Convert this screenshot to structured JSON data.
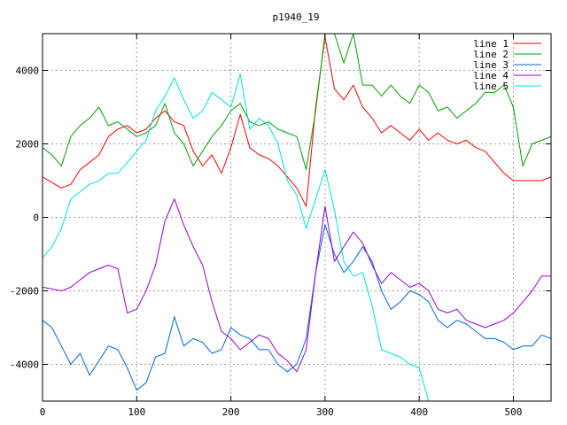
{
  "chart_data": {
    "type": "line",
    "title": "p1940_19",
    "xlabel": "",
    "ylabel": "",
    "xlim": [
      0,
      540
    ],
    "ylim": [
      -5000,
      5000
    ],
    "x_ticks": [
      0,
      100,
      200,
      300,
      400,
      500
    ],
    "y_ticks": [
      -4000,
      -2000,
      0,
      2000,
      4000
    ],
    "grid": true,
    "legend_position": "top-right",
    "series": [
      {
        "name": "line 1",
        "color": "#ff0000",
        "points": [
          [
            0,
            1100
          ],
          [
            10,
            950
          ],
          [
            20,
            800
          ],
          [
            30,
            900
          ],
          [
            40,
            1300
          ],
          [
            50,
            1500
          ],
          [
            60,
            1700
          ],
          [
            70,
            2200
          ],
          [
            80,
            2400
          ],
          [
            90,
            2500
          ],
          [
            100,
            2300
          ],
          [
            110,
            2400
          ],
          [
            120,
            2700
          ],
          [
            130,
            2900
          ],
          [
            140,
            2600
          ],
          [
            150,
            2500
          ],
          [
            160,
            1800
          ],
          [
            170,
            1400
          ],
          [
            180,
            1700
          ],
          [
            190,
            1200
          ],
          [
            200,
            1900
          ],
          [
            210,
            2800
          ],
          [
            220,
            1900
          ],
          [
            230,
            1700
          ],
          [
            240,
            1600
          ],
          [
            250,
            1400
          ],
          [
            260,
            1100
          ],
          [
            270,
            800
          ],
          [
            280,
            300
          ],
          [
            290,
            3000
          ],
          [
            300,
            4900
          ],
          [
            310,
            3500
          ],
          [
            320,
            3200
          ],
          [
            330,
            3600
          ],
          [
            340,
            3000
          ],
          [
            350,
            2700
          ],
          [
            360,
            2300
          ],
          [
            370,
            2500
          ],
          [
            380,
            2300
          ],
          [
            390,
            2100
          ],
          [
            400,
            2400
          ],
          [
            410,
            2100
          ],
          [
            420,
            2300
          ],
          [
            430,
            2100
          ],
          [
            440,
            2000
          ],
          [
            450,
            2100
          ],
          [
            460,
            1900
          ],
          [
            470,
            1800
          ],
          [
            480,
            1500
          ],
          [
            490,
            1200
          ],
          [
            500,
            1000
          ],
          [
            510,
            1000
          ],
          [
            520,
            1000
          ],
          [
            530,
            1000
          ],
          [
            540,
            1100
          ]
        ]
      },
      {
        "name": "line 2",
        "color": "#00a000",
        "points": [
          [
            0,
            1900
          ],
          [
            10,
            1700
          ],
          [
            20,
            1400
          ],
          [
            30,
            2200
          ],
          [
            40,
            2500
          ],
          [
            50,
            2700
          ],
          [
            60,
            3000
          ],
          [
            70,
            2500
          ],
          [
            80,
            2600
          ],
          [
            90,
            2400
          ],
          [
            100,
            2200
          ],
          [
            110,
            2300
          ],
          [
            120,
            2500
          ],
          [
            130,
            3100
          ],
          [
            140,
            2300
          ],
          [
            150,
            2000
          ],
          [
            160,
            1400
          ],
          [
            170,
            1800
          ],
          [
            180,
            2200
          ],
          [
            190,
            2500
          ],
          [
            200,
            2900
          ],
          [
            210,
            3100
          ],
          [
            220,
            2600
          ],
          [
            230,
            2500
          ],
          [
            240,
            2600
          ],
          [
            250,
            2400
          ],
          [
            260,
            2300
          ],
          [
            270,
            2200
          ],
          [
            280,
            1300
          ],
          [
            290,
            2900
          ],
          [
            300,
            5000
          ],
          [
            310,
            5000
          ],
          [
            320,
            4200
          ],
          [
            330,
            5000
          ],
          [
            340,
            3600
          ],
          [
            350,
            3600
          ],
          [
            360,
            3300
          ],
          [
            370,
            3600
          ],
          [
            380,
            3300
          ],
          [
            390,
            3100
          ],
          [
            400,
            3600
          ],
          [
            410,
            3400
          ],
          [
            420,
            2900
          ],
          [
            430,
            3000
          ],
          [
            440,
            2700
          ],
          [
            450,
            2900
          ],
          [
            460,
            3100
          ],
          [
            470,
            3400
          ],
          [
            480,
            3400
          ],
          [
            490,
            3600
          ],
          [
            500,
            3000
          ],
          [
            510,
            1400
          ],
          [
            520,
            2000
          ],
          [
            530,
            2100
          ],
          [
            540,
            2200
          ]
        ]
      },
      {
        "name": "line 3",
        "color": "#0066dd",
        "points": [
          [
            0,
            -2800
          ],
          [
            10,
            -3000
          ],
          [
            20,
            -3500
          ],
          [
            30,
            -4000
          ],
          [
            40,
            -3700
          ],
          [
            50,
            -4300
          ],
          [
            60,
            -3900
          ],
          [
            70,
            -3500
          ],
          [
            80,
            -3600
          ],
          [
            90,
            -4100
          ],
          [
            100,
            -4700
          ],
          [
            110,
            -4500
          ],
          [
            120,
            -3800
          ],
          [
            130,
            -3700
          ],
          [
            140,
            -2700
          ],
          [
            150,
            -3500
          ],
          [
            160,
            -3300
          ],
          [
            170,
            -3400
          ],
          [
            180,
            -3700
          ],
          [
            190,
            -3600
          ],
          [
            200,
            -3000
          ],
          [
            210,
            -3200
          ],
          [
            220,
            -3300
          ],
          [
            230,
            -3600
          ],
          [
            240,
            -3600
          ],
          [
            250,
            -4000
          ],
          [
            260,
            -4200
          ],
          [
            270,
            -4000
          ],
          [
            280,
            -3300
          ],
          [
            290,
            -1500
          ],
          [
            300,
            -200
          ],
          [
            310,
            -1000
          ],
          [
            320,
            -1500
          ],
          [
            330,
            -1200
          ],
          [
            340,
            -800
          ],
          [
            350,
            -1200
          ],
          [
            360,
            -2000
          ],
          [
            370,
            -2500
          ],
          [
            380,
            -2300
          ],
          [
            390,
            -2000
          ],
          [
            400,
            -2100
          ],
          [
            410,
            -2300
          ],
          [
            420,
            -2800
          ],
          [
            430,
            -3000
          ],
          [
            440,
            -2800
          ],
          [
            450,
            -2900
          ],
          [
            460,
            -3100
          ],
          [
            470,
            -3300
          ],
          [
            480,
            -3300
          ],
          [
            490,
            -3400
          ],
          [
            500,
            -3600
          ],
          [
            510,
            -3500
          ],
          [
            520,
            -3500
          ],
          [
            530,
            -3200
          ],
          [
            540,
            -3300
          ]
        ]
      },
      {
        "name": "line 4",
        "color": "#9900cc",
        "points": [
          [
            0,
            -1900
          ],
          [
            10,
            -1950
          ],
          [
            20,
            -2000
          ],
          [
            30,
            -1900
          ],
          [
            40,
            -1700
          ],
          [
            50,
            -1500
          ],
          [
            60,
            -1400
          ],
          [
            70,
            -1300
          ],
          [
            80,
            -1400
          ],
          [
            90,
            -2600
          ],
          [
            100,
            -2500
          ],
          [
            110,
            -2000
          ],
          [
            120,
            -1300
          ],
          [
            130,
            -100
          ],
          [
            140,
            500
          ],
          [
            150,
            -200
          ],
          [
            160,
            -800
          ],
          [
            170,
            -1300
          ],
          [
            180,
            -2300
          ],
          [
            190,
            -3100
          ],
          [
            200,
            -3300
          ],
          [
            210,
            -3600
          ],
          [
            220,
            -3400
          ],
          [
            230,
            -3200
          ],
          [
            240,
            -3300
          ],
          [
            250,
            -3700
          ],
          [
            260,
            -3900
          ],
          [
            270,
            -4200
          ],
          [
            280,
            -3600
          ],
          [
            290,
            -1500
          ],
          [
            300,
            300
          ],
          [
            310,
            -1200
          ],
          [
            320,
            -800
          ],
          [
            330,
            -400
          ],
          [
            340,
            -700
          ],
          [
            350,
            -1300
          ],
          [
            360,
            -1800
          ],
          [
            370,
            -1500
          ],
          [
            380,
            -1700
          ],
          [
            390,
            -1900
          ],
          [
            400,
            -1800
          ],
          [
            410,
            -2000
          ],
          [
            420,
            -2500
          ],
          [
            430,
            -2600
          ],
          [
            440,
            -2500
          ],
          [
            450,
            -2800
          ],
          [
            460,
            -2900
          ],
          [
            470,
            -3000
          ],
          [
            480,
            -2900
          ],
          [
            490,
            -2800
          ],
          [
            500,
            -2600
          ],
          [
            510,
            -2300
          ],
          [
            520,
            -2000
          ],
          [
            530,
            -1600
          ],
          [
            540,
            -1600
          ]
        ]
      },
      {
        "name": "line 5",
        "color": "#00e0e0",
        "points": [
          [
            0,
            -1100
          ],
          [
            10,
            -800
          ],
          [
            20,
            -300
          ],
          [
            30,
            500
          ],
          [
            40,
            700
          ],
          [
            50,
            900
          ],
          [
            60,
            1000
          ],
          [
            70,
            1200
          ],
          [
            80,
            1200
          ],
          [
            90,
            1500
          ],
          [
            100,
            1800
          ],
          [
            110,
            2100
          ],
          [
            120,
            2900
          ],
          [
            130,
            3300
          ],
          [
            140,
            3800
          ],
          [
            150,
            3200
          ],
          [
            160,
            2700
          ],
          [
            170,
            2900
          ],
          [
            180,
            3400
          ],
          [
            190,
            3200
          ],
          [
            200,
            3000
          ],
          [
            210,
            3900
          ],
          [
            220,
            2400
          ],
          [
            230,
            2700
          ],
          [
            240,
            2500
          ],
          [
            250,
            2000
          ],
          [
            260,
            1000
          ],
          [
            270,
            600
          ],
          [
            280,
            -300
          ],
          [
            290,
            500
          ],
          [
            300,
            1300
          ],
          [
            310,
            200
          ],
          [
            320,
            -1200
          ],
          [
            330,
            -1600
          ],
          [
            340,
            -1500
          ],
          [
            350,
            -2400
          ],
          [
            360,
            -3600
          ],
          [
            370,
            -3700
          ],
          [
            380,
            -3800
          ],
          [
            390,
            -4000
          ],
          [
            400,
            -4100
          ],
          [
            410,
            -5000
          ]
        ]
      }
    ]
  }
}
